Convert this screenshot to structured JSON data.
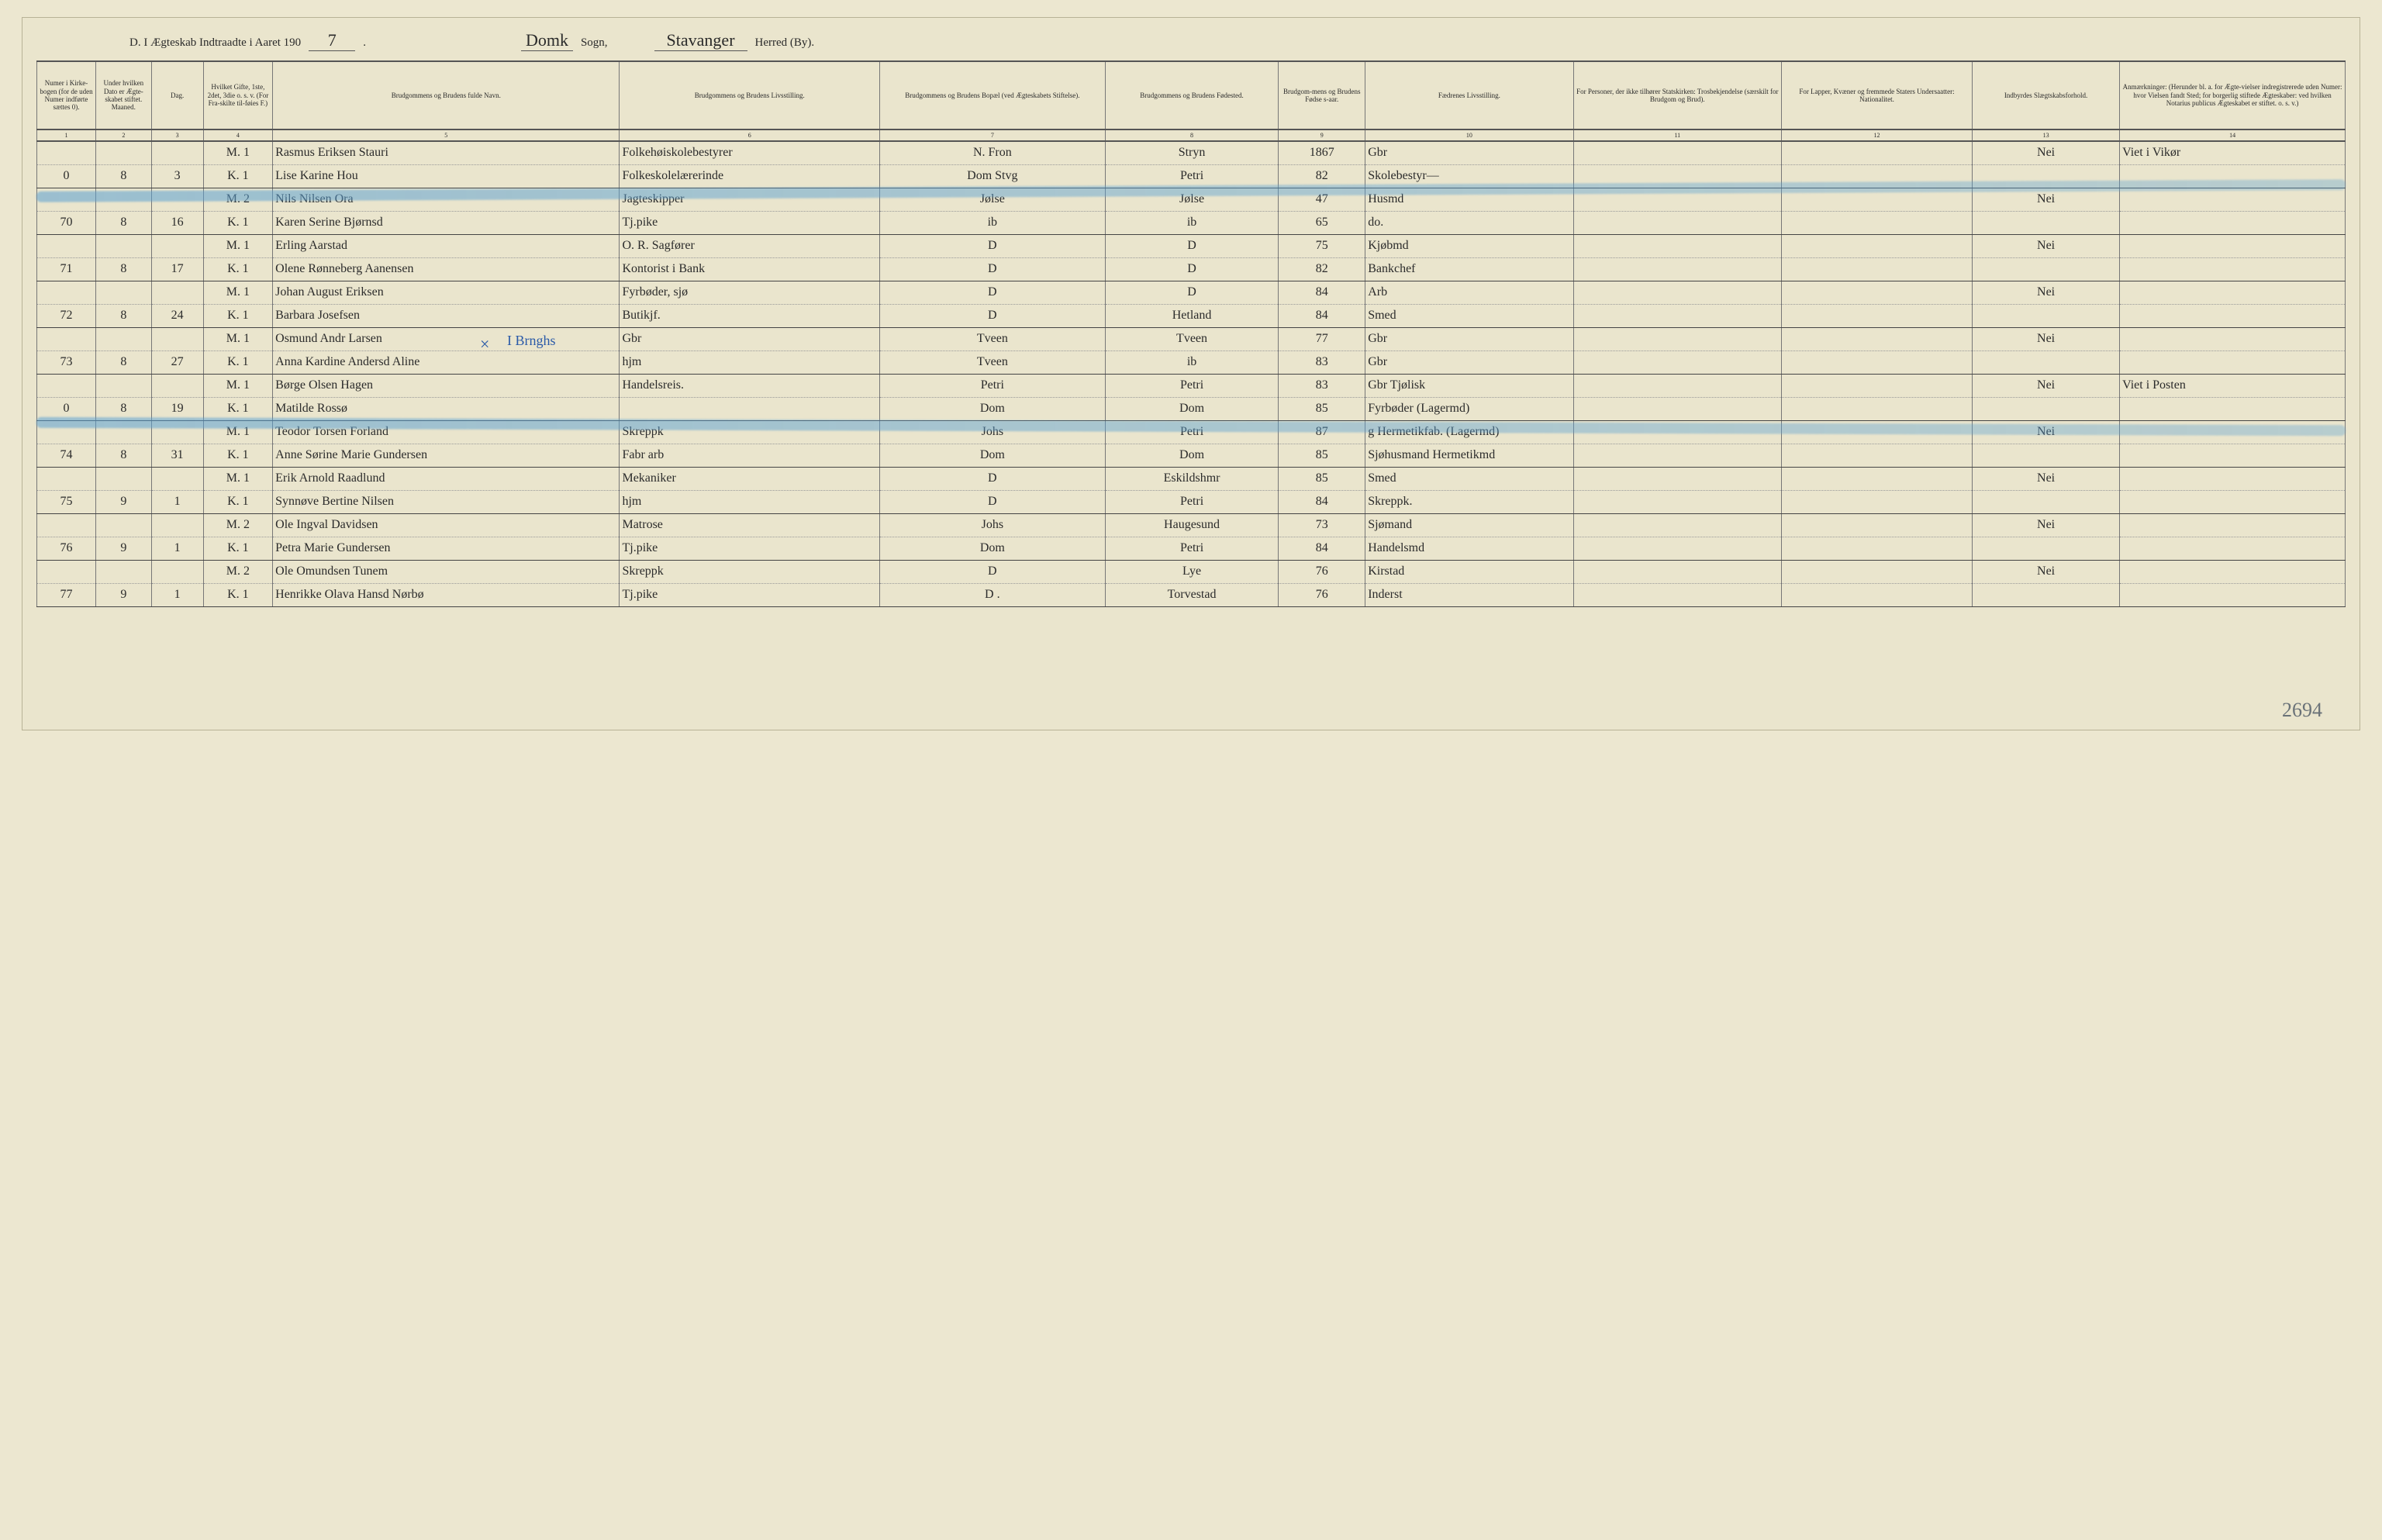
{
  "header": {
    "prefix": "D.  I Ægteskab Indtraadte i Aaret 190",
    "year_suffix": "7",
    "sogn_label": "Sogn,",
    "sogn_value": "Domk",
    "herred_label": "Herred (By).",
    "herred_value": "Stavanger"
  },
  "columns": [
    {
      "n": "1",
      "label": "Numer i Kirke-bogen (for de uden Numer indførte sættes 0)."
    },
    {
      "n": "2",
      "label": "Under hvilken Dato er Ægte-skabet stiftet.\nMaaned."
    },
    {
      "n": "3",
      "label": "Dag."
    },
    {
      "n": "4",
      "label": "Hvilket Gifte, 1ste, 2det, 3die o. s. v. (For Fra-skilte til-føies F.)"
    },
    {
      "n": "5",
      "label": "Brudgommens og Brudens fulde Navn."
    },
    {
      "n": "6",
      "label": "Brudgommens og Brudens Livsstilling."
    },
    {
      "n": "7",
      "label": "Brudgommens og Brudens Bopæl (ved Ægteskabets Stiftelse)."
    },
    {
      "n": "8",
      "label": "Brudgommens og Brudens Fødested."
    },
    {
      "n": "9",
      "label": "Brudgom-mens og Brudens Fødse s-aar."
    },
    {
      "n": "10",
      "label": "Fædrenes Livsstilling."
    },
    {
      "n": "11",
      "label": "For Personer, der ikke tilhører Statskirken: Trosbekjendelse (særskilt for Brudgom og Brud)."
    },
    {
      "n": "12",
      "label": "For Lapper, Kvæner og fremmede Staters Undersaatter: Nationalitet."
    },
    {
      "n": "13",
      "label": "Indbyrdes Slægtskabsforhold."
    },
    {
      "n": "14",
      "label": "Anmærkninger: (Herunder bl. a. for Ægte-vielser indregistrerede uden Numer: hvor Vielsen fandt Sted; for borgerlig stiftede Ægteskaber: ved hvilken Notarius publicus Ægteskabet er stiftet. o. s. v.)"
    }
  ],
  "rows": [
    {
      "num": "",
      "mnd": "",
      "dag": "",
      "gifte": "M. 1",
      "navn": "Rasmus Eriksen Stauri",
      "liv": "Folkehøiskolebestyrer",
      "bopel": "N. Fron",
      "fsted": "Stryn",
      "faar": "1867",
      "faedr": "Gbr",
      "tros": "",
      "nat": "",
      "slegt": "Nei",
      "anm": "Viet i Vikør"
    },
    {
      "num": "0",
      "mnd": "8",
      "dag": "3",
      "gifte": "K. 1",
      "navn": "Lise Karine Hou",
      "liv": "Folkeskolelærerinde",
      "bopel": "Dom  Stvg",
      "fsted": "Petri",
      "faar": "82",
      "faedr": "Skolebestyr—",
      "tros": "",
      "nat": "",
      "slegt": "",
      "anm": ""
    },
    {
      "num": "",
      "mnd": "",
      "dag": "",
      "gifte": "M. 2",
      "navn": "Nils Nilsen Ora",
      "liv": "Jagteskipper",
      "bopel": "Jølse",
      "fsted": "Jølse",
      "faar": "47",
      "faedr": "Husmd",
      "tros": "",
      "nat": "",
      "slegt": "Nei",
      "anm": ""
    },
    {
      "num": "70",
      "mnd": "8",
      "dag": "16",
      "gifte": "K. 1",
      "navn": "Karen Serine Bjørnsd",
      "liv": "Tj.pike",
      "bopel": "ib",
      "fsted": "ib",
      "faar": "65",
      "faedr": "do.",
      "tros": "",
      "nat": "",
      "slegt": "",
      "anm": ""
    },
    {
      "num": "",
      "mnd": "",
      "dag": "",
      "gifte": "M. 1",
      "navn": "Erling Aarstad",
      "liv": "O. R. Sagfører",
      "bopel": "D",
      "fsted": "D",
      "faar": "75",
      "faedr": "Kjøbmd",
      "tros": "",
      "nat": "",
      "slegt": "Nei",
      "anm": ""
    },
    {
      "num": "71",
      "mnd": "8",
      "dag": "17",
      "gifte": "K. 1",
      "navn": "Olene Rønneberg Aanensen",
      "liv": "Kontorist i Bank",
      "bopel": "D",
      "fsted": "D",
      "faar": "82",
      "faedr": "Bankchef",
      "tros": "",
      "nat": "",
      "slegt": "",
      "anm": ""
    },
    {
      "num": "",
      "mnd": "",
      "dag": "",
      "gifte": "M. 1",
      "valgte": "",
      "navn": "Johan August Eriksen",
      "liv": "Fyrbøder, sjø",
      "bopel": "D",
      "fsted": "D",
      "faar": "84",
      "faedr": "Arb",
      "tros": "",
      "nat": "",
      "slegt": "Nei",
      "anm": ""
    },
    {
      "num": "72",
      "mnd": "8",
      "dag": "24",
      "gifte": "K. 1",
      "navn": "Barbara Josefsen",
      "liv": "Butikjf.",
      "bopel": "D",
      "fsted": "Hetland",
      "faar": "84",
      "faedr": "Smed",
      "tros": "",
      "nat": "",
      "slegt": "",
      "anm": ""
    },
    {
      "num": "",
      "mnd": "",
      "dag": "",
      "gifte": "M. 1",
      "navn": "Osmund Andr Larsen",
      "liv": "Gbr",
      "bopel": "Tveen",
      "fsted": "Tveen",
      "faar": "77",
      "faedr": "Gbr",
      "tros": "",
      "nat": "",
      "slegt": "Nei",
      "anm": ""
    },
    {
      "num": "73",
      "mnd": "8",
      "dag": "27",
      "gifte": "K. 1",
      "navn": "Anna Kardine Andersd Aline",
      "liv": "hjm",
      "bopel": "Tveen",
      "fsted": "ib",
      "faar": "83",
      "faedr": "Gbr",
      "tros": "",
      "nat": "",
      "slegt": "",
      "anm": ""
    },
    {
      "num": "",
      "mnd": "",
      "dag": "",
      "gifte": "M. 1",
      "navn": "Børge Olsen Hagen",
      "liv": "Handelsreis.",
      "bopel": "Petri",
      "fsted": "Petri",
      "faar": "83",
      "faedr": "Gbr Tjølisk",
      "tros": "",
      "nat": "",
      "slegt": "Nei",
      "anm": "Viet i Posten"
    },
    {
      "num": "0",
      "mnd": "8",
      "dag": "19",
      "gifte": "K. 1",
      "navn": "Matilde Rossø",
      "liv": "",
      "bopel": "Dom",
      "fsted": "Dom",
      "faar": "85",
      "faedr": "Fyrbøder (Lagermd)",
      "tros": "",
      "nat": "",
      "slegt": "",
      "anm": ""
    },
    {
      "num": "",
      "mnd": "",
      "dag": "",
      "gifte": "M. 1",
      "navn": "Teodor Torsen Forland",
      "liv": "Skreppk",
      "bopel": "Johs",
      "fsted": "Petri",
      "faar": "87",
      "faedr": "g Hermetikfab. (Lagermd)",
      "tros": "",
      "nat": "",
      "slegt": "Nei",
      "anm": ""
    },
    {
      "num": "74",
      "mnd": "8",
      "dag": "31",
      "gifte": "K. 1",
      "navn": "Anne Sørine Marie Gundersen",
      "liv": "Fabr arb",
      "bopel": "Dom",
      "fsted": "Dom",
      "faar": "85",
      "faedr": "Sjøhusmand Hermetikmd",
      "tros": "",
      "nat": "",
      "slegt": "",
      "anm": ""
    },
    {
      "num": "",
      "mnd": "",
      "dag": "",
      "gifte": "M. 1",
      "navn": "Erik Arnold Raadlund",
      "liv": "Mekaniker",
      "bopel": "D",
      "fsted": "Eskildshmr",
      "faar": "85",
      "faedr": "Smed",
      "tros": "",
      "nat": "",
      "slegt": "Nei",
      "anm": ""
    },
    {
      "num": "75",
      "mnd": "9",
      "dag": "1",
      "gifte": "K. 1",
      "navn": "Synnøve Bertine Nilsen",
      "liv": "hjm",
      "bopel": "D",
      "fsted": "Petri",
      "faar": "84",
      "faedr": "Skreppk.",
      "tros": "",
      "nat": "",
      "slegt": "",
      "anm": ""
    },
    {
      "num": "",
      "mnd": "",
      "dag": "",
      "gifte": "M. 2",
      "navn": "Ole Ingval Davidsen",
      "liv": "Matrose",
      "bopel": "Johs",
      "fsted": "Haugesund",
      "faar": "73",
      "faedr": "Sjømand",
      "tros": "",
      "nat": "",
      "slegt": "Nei",
      "anm": ""
    },
    {
      "num": "76",
      "mnd": "9",
      "dag": "1",
      "gifte": "K. 1",
      "navn": "Petra Marie Gundersen",
      "liv": "Tj.pike",
      "bopel": "Dom",
      "fsted": "Petri",
      "faar": "84",
      "faedr": "Handelsmd",
      "tros": "",
      "nat": "",
      "slegt": "",
      "anm": ""
    },
    {
      "num": "",
      "mnd": "",
      "dag": "",
      "gifte": "M. 2",
      "navn": "Ole Omundsen Tunem",
      "liv": "Skreppk",
      "bopel": "D",
      "fsted": "Lye",
      "faar": "76",
      "faedr": "Kirstad",
      "tros": "",
      "nat": "",
      "slegt": "Nei",
      "anm": ""
    },
    {
      "num": "77",
      "mnd": "9",
      "dag": "1",
      "gifte": "K. 1",
      "navn": "Henrikke Olava Hansd Nørbø",
      "liv": "Tj.pike",
      "bopel": "D    .",
      "fsted": "Torvestad",
      "faar": "76",
      "faedr": "Inderst",
      "tros": "",
      "nat": "",
      "slegt": "",
      "anm": ""
    }
  ],
  "annotations": {
    "pencil_bottom_right": "2694",
    "blue_x": "×",
    "blue_word": "I Brnghs"
  },
  "style": {
    "page_bg": "#eae5cd",
    "ink": "#2b2b2b",
    "rule": "#777",
    "highlight": "rgba(90,160,210,0.55)",
    "pencil": "#6a7278",
    "blue_ink": "#2a5aa8",
    "script_font": "Brush Script MT"
  }
}
